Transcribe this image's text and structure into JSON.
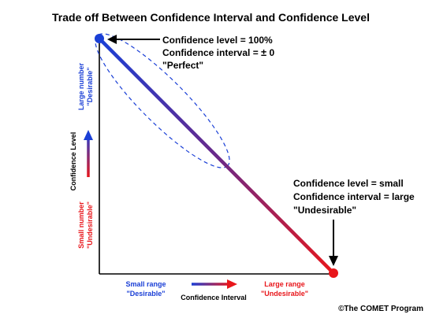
{
  "title": "Trade off Between Confidence Interval and Confidence Level",
  "top_annotation": {
    "line1": "Confidence level = 100%",
    "line2_prefix": "Confidence interval = ",
    "line2_symbol": "±",
    "line2_suffix": " 0",
    "line3": "\"Perfect\""
  },
  "bottom_annotation": {
    "line1": "Confidence level = small",
    "line2": "Confidence interval = large",
    "line3": "\"Undesirable\""
  },
  "y_axis": {
    "label": "Confidence Level",
    "top_label_line1": "Large number",
    "top_label_line2": "\"Desirable\"",
    "bottom_label_line1": "Small number",
    "bottom_label_line2": "\"Undesirable\""
  },
  "x_axis": {
    "label": "Confidence Interval",
    "left_label_line1": "Small range",
    "left_label_line2": "\"Desirable\"",
    "right_label_line1": "Large range",
    "right_label_line2": "\"Undesirable\""
  },
  "credit": "©The COMET Program",
  "colors": {
    "desirable": "#1a3fd6",
    "undesirable": "#e8161b",
    "text": "#000000"
  }
}
